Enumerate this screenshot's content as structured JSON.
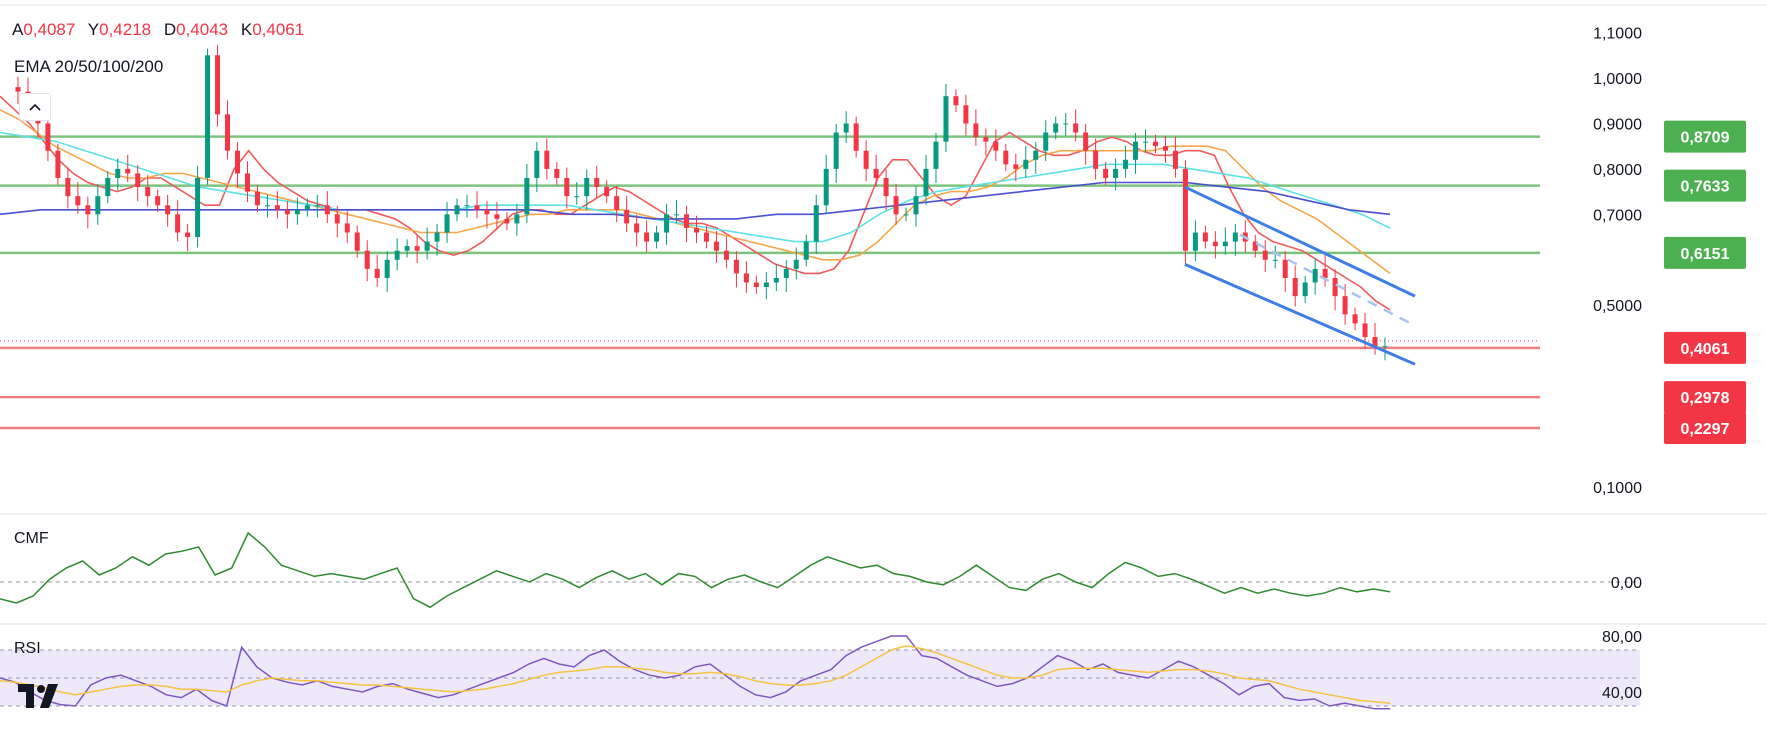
{
  "ohlc": {
    "open_label": "A",
    "open": "0,4087",
    "high_label": "Y",
    "high": "0,4218",
    "low_label": "D",
    "low": "0,4043",
    "close_label": "K",
    "close": "0,4061"
  },
  "indicator_label": "EMA 20/50/100/200",
  "panes": {
    "cmf_label": "CMF",
    "rsi_label": "RSI"
  },
  "colors": {
    "up": "#089981",
    "down": "#f23645",
    "ema20": "#f05b5b",
    "ema50": "#f7a64b",
    "ema100": "#5ce1e6",
    "ema200": "#4a4fcf",
    "support_line": "#f08080",
    "resistance_line": "#7cc47e",
    "channel": "#3d7fe6",
    "cmf": "#2e8b2e",
    "rsi": "#7e57c2",
    "rsi_ma": "#f5c242",
    "rsi_band": "#ede9fb"
  },
  "icons": {
    "collapse": "chevron-up-icon",
    "logo": "tradingview-logo-icon"
  },
  "chart_data": {
    "type": "candlestick",
    "main": {
      "y_axis_ticks": [
        "1,1000",
        "1,0000",
        "0,9000",
        "0,8000",
        "0,7000",
        "0,5000",
        "0,1000"
      ],
      "resistance_levels": [
        0.8709,
        0.7633,
        0.6151
      ],
      "support_levels": [
        0.4061,
        0.2978,
        0.2297
      ],
      "price_badges": [
        {
          "label": "0,8709",
          "kind": "resistance"
        },
        {
          "label": "0,7633",
          "kind": "resistance"
        },
        {
          "label": "0,6151",
          "kind": "resistance"
        },
        {
          "label": "0,4061",
          "kind": "support"
        },
        {
          "label": "0,2978",
          "kind": "support"
        },
        {
          "label": "0,2297",
          "kind": "support"
        }
      ],
      "price_path": [
        0.98,
        0.97,
        0.93,
        0.9,
        0.84,
        0.78,
        0.74,
        0.72,
        0.7,
        0.74,
        0.78,
        0.8,
        0.79,
        0.76,
        0.74,
        0.72,
        0.7,
        0.66,
        0.65,
        0.78,
        1.05,
        0.92,
        0.84,
        0.79,
        0.75,
        0.72,
        0.72,
        0.71,
        0.7,
        0.71,
        0.72,
        0.72,
        0.7,
        0.68,
        0.66,
        0.62,
        0.58,
        0.56,
        0.6,
        0.62,
        0.63,
        0.62,
        0.64,
        0.66,
        0.7,
        0.72,
        0.72,
        0.71,
        0.7,
        0.69,
        0.68,
        0.7,
        0.78,
        0.84,
        0.8,
        0.78,
        0.74,
        0.74,
        0.78,
        0.76,
        0.74,
        0.71,
        0.68,
        0.66,
        0.64,
        0.66,
        0.7,
        0.7,
        0.67,
        0.66,
        0.64,
        0.62,
        0.6,
        0.57,
        0.55,
        0.54,
        0.55,
        0.56,
        0.58,
        0.6,
        0.64,
        0.72,
        0.8,
        0.88,
        0.9,
        0.84,
        0.8,
        0.78,
        0.74,
        0.7,
        0.7,
        0.74,
        0.8,
        0.86,
        0.96,
        0.94,
        0.9,
        0.87,
        0.86,
        0.84,
        0.81,
        0.8,
        0.82,
        0.84,
        0.88,
        0.9,
        0.9,
        0.88,
        0.84,
        0.8,
        0.78,
        0.8,
        0.82,
        0.86,
        0.86,
        0.85,
        0.84,
        0.8,
        0.62,
        0.66,
        0.64,
        0.63,
        0.64,
        0.66,
        0.64,
        0.62,
        0.6,
        0.6,
        0.56,
        0.52,
        0.55,
        0.58,
        0.56,
        0.52,
        0.48,
        0.46,
        0.43,
        0.41,
        0.41
      ],
      "ema_series": [
        {
          "name": "EMA 20",
          "values": [
            0.96,
            0.93,
            0.9,
            0.86,
            0.82,
            0.79,
            0.77,
            0.76,
            0.75,
            0.76,
            0.78,
            0.78,
            0.76,
            0.74,
            0.72,
            0.72,
            0.8,
            0.84,
            0.8,
            0.77,
            0.75,
            0.73,
            0.72,
            0.71,
            0.71,
            0.71,
            0.7,
            0.69,
            0.67,
            0.64,
            0.62,
            0.61,
            0.62,
            0.64,
            0.67,
            0.7,
            0.71,
            0.71,
            0.7,
            0.7,
            0.72,
            0.74,
            0.76,
            0.75,
            0.73,
            0.71,
            0.69,
            0.68,
            0.68,
            0.67,
            0.65,
            0.63,
            0.61,
            0.59,
            0.58,
            0.57,
            0.57,
            0.58,
            0.62,
            0.7,
            0.78,
            0.82,
            0.82,
            0.78,
            0.74,
            0.72,
            0.74,
            0.8,
            0.86,
            0.88,
            0.86,
            0.84,
            0.83,
            0.83,
            0.84,
            0.86,
            0.87,
            0.86,
            0.84,
            0.83,
            0.83,
            0.84,
            0.84,
            0.83,
            0.76,
            0.7,
            0.66,
            0.64,
            0.63,
            0.62,
            0.6,
            0.58,
            0.56,
            0.54,
            0.51,
            0.49
          ]
        },
        {
          "name": "EMA 50",
          "values": [
            0.93,
            0.91,
            0.88,
            0.85,
            0.83,
            0.81,
            0.79,
            0.78,
            0.78,
            0.79,
            0.79,
            0.78,
            0.77,
            0.76,
            0.75,
            0.74,
            0.73,
            0.72,
            0.71,
            0.7,
            0.69,
            0.68,
            0.67,
            0.66,
            0.66,
            0.66,
            0.67,
            0.68,
            0.69,
            0.7,
            0.7,
            0.71,
            0.71,
            0.71,
            0.71,
            0.7,
            0.69,
            0.68,
            0.67,
            0.66,
            0.65,
            0.64,
            0.63,
            0.62,
            0.61,
            0.6,
            0.6,
            0.61,
            0.64,
            0.68,
            0.72,
            0.74,
            0.75,
            0.75,
            0.76,
            0.78,
            0.81,
            0.83,
            0.84,
            0.84,
            0.84,
            0.84,
            0.84,
            0.84,
            0.85,
            0.85,
            0.85,
            0.84,
            0.8,
            0.76,
            0.73,
            0.71,
            0.69,
            0.66,
            0.63,
            0.6,
            0.57
          ]
        },
        {
          "name": "EMA 100",
          "values": [
            0.88,
            0.87,
            0.86,
            0.84,
            0.82,
            0.8,
            0.78,
            0.76,
            0.75,
            0.74,
            0.73,
            0.72,
            0.71,
            0.71,
            0.71,
            0.71,
            0.71,
            0.72,
            0.72,
            0.72,
            0.72,
            0.71,
            0.7,
            0.69,
            0.68,
            0.67,
            0.66,
            0.65,
            0.64,
            0.64,
            0.66,
            0.7,
            0.73,
            0.75,
            0.76,
            0.77,
            0.78,
            0.79,
            0.8,
            0.81,
            0.81,
            0.81,
            0.8,
            0.79,
            0.78,
            0.76,
            0.74,
            0.72,
            0.7,
            0.67
          ]
        },
        {
          "name": "EMA 200",
          "values": [
            0.7,
            0.71,
            0.71,
            0.71,
            0.71,
            0.71,
            0.71,
            0.71,
            0.71,
            0.71,
            0.71,
            0.71,
            0.71,
            0.71,
            0.7,
            0.7,
            0.69,
            0.69,
            0.69,
            0.7,
            0.7,
            0.71,
            0.72,
            0.73,
            0.74,
            0.75,
            0.76,
            0.77,
            0.77,
            0.77,
            0.76,
            0.75,
            0.73,
            0.71,
            0.7
          ]
        }
      ],
      "descending_channel": {
        "upper": [
          0.76,
          0.52
        ],
        "lower": [
          0.59,
          0.37
        ]
      }
    },
    "cmf": {
      "y_axis_ticks": [
        "0,00"
      ],
      "values": [
        -0.12,
        -0.15,
        -0.1,
        0.02,
        0.1,
        0.15,
        0.05,
        0.1,
        0.18,
        0.12,
        0.2,
        0.22,
        0.25,
        0.05,
        0.1,
        0.35,
        0.25,
        0.12,
        0.08,
        0.04,
        0.06,
        0.04,
        0.02,
        0.06,
        0.1,
        -0.12,
        -0.18,
        -0.1,
        -0.04,
        0.02,
        0.08,
        0.04,
        0.0,
        0.06,
        0.02,
        -0.04,
        0.03,
        0.08,
        0.02,
        0.06,
        -0.02,
        0.06,
        0.04,
        -0.04,
        0.02,
        0.05,
        0.0,
        -0.04,
        0.04,
        0.12,
        0.18,
        0.14,
        0.1,
        0.12,
        0.06,
        0.04,
        0.0,
        -0.02,
        0.04,
        0.12,
        0.04,
        -0.04,
        -0.06,
        0.02,
        0.06,
        0.0,
        -0.04,
        0.06,
        0.14,
        0.1,
        0.04,
        0.06,
        0.02,
        -0.03,
        -0.08,
        -0.04,
        -0.08,
        -0.05,
        -0.08,
        -0.1,
        -0.08,
        -0.04,
        -0.07,
        -0.05,
        -0.07
      ],
      "zero_line": 0
    },
    "rsi": {
      "y_axis_ticks": [
        "80,00",
        "40,00"
      ],
      "band": [
        70,
        30
      ],
      "midline": 50,
      "values": [
        50,
        47,
        40,
        34,
        31,
        30,
        45,
        50,
        52,
        48,
        44,
        38,
        36,
        42,
        34,
        30,
        72,
        58,
        50,
        47,
        45,
        48,
        44,
        42,
        40,
        44,
        46,
        42,
        39,
        36,
        38,
        42,
        46,
        50,
        54,
        60,
        64,
        60,
        58,
        66,
        70,
        62,
        56,
        52,
        50,
        52,
        58,
        60,
        52,
        44,
        38,
        36,
        40,
        48,
        52,
        56,
        66,
        72,
        76,
        80,
        80,
        66,
        64,
        58,
        52,
        48,
        44,
        46,
        50,
        58,
        66,
        62,
        56,
        60,
        54,
        52,
        50,
        56,
        62,
        58,
        52,
        46,
        38,
        44,
        46,
        36,
        34,
        35,
        30,
        32,
        30,
        28,
        28
      ],
      "ma_values": [
        48,
        47,
        45,
        43,
        40,
        38,
        40,
        42,
        44,
        45,
        45,
        44,
        42,
        42,
        41,
        40,
        45,
        48,
        50,
        49,
        48,
        48,
        47,
        46,
        45,
        45,
        44,
        43,
        42,
        41,
        40,
        41,
        42,
        44,
        46,
        49,
        52,
        54,
        55,
        56,
        58,
        58,
        57,
        56,
        54,
        53,
        53,
        54,
        53,
        51,
        48,
        46,
        45,
        45,
        46,
        48,
        52,
        58,
        64,
        70,
        73,
        71,
        68,
        64,
        60,
        56,
        52,
        50,
        50,
        52,
        56,
        57,
        57,
        57,
        56,
        55,
        54,
        55,
        56,
        56,
        55,
        53,
        50,
        49,
        48,
        45,
        42,
        40,
        38,
        36,
        34,
        33,
        32
      ]
    }
  }
}
